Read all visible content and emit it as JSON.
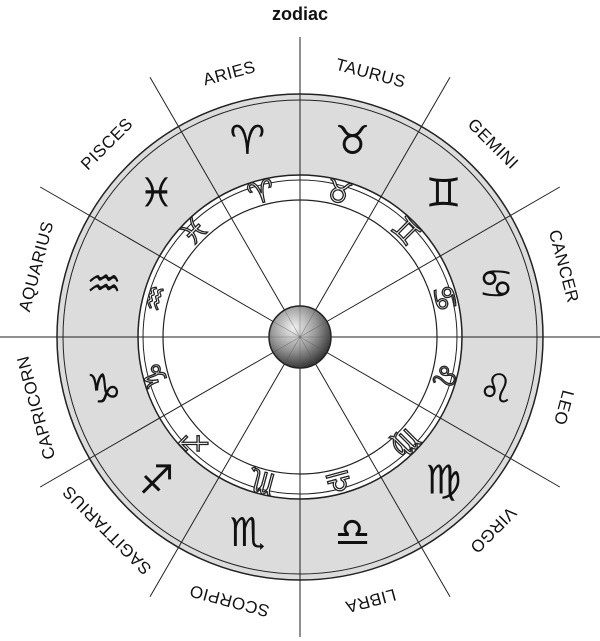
{
  "title": "zodiac",
  "colors": {
    "outer_ring": "#ffffff",
    "figure_ring": "#dcdcdc",
    "glyph_ring": "#ffffff",
    "hub": "#8a8a8a",
    "line": "#222222"
  },
  "signs": [
    {
      "name": "ARIES",
      "glyph": "♈",
      "icon": "ram-icon"
    },
    {
      "name": "TAURUS",
      "glyph": "♉",
      "icon": "bull-icon"
    },
    {
      "name": "GEMINI",
      "glyph": "♊",
      "icon": "twins-icon"
    },
    {
      "name": "CANCER",
      "glyph": "♋",
      "icon": "crab-icon"
    },
    {
      "name": "LEO",
      "glyph": "♌",
      "icon": "lion-icon"
    },
    {
      "name": "VIRGO",
      "glyph": "♍",
      "icon": "maiden-icon"
    },
    {
      "name": "LIBRA",
      "glyph": "♎",
      "icon": "scales-icon"
    },
    {
      "name": "SCORPIO",
      "glyph": "♏",
      "icon": "scorpion-icon"
    },
    {
      "name": "SAGITTARIUS",
      "glyph": "♐",
      "icon": "archer-icon"
    },
    {
      "name": "CAPRICORN",
      "glyph": "♑",
      "icon": "goat-icon"
    },
    {
      "name": "AQUARIUS",
      "glyph": "♒",
      "icon": "water-bearer-icon"
    },
    {
      "name": "PISCES",
      "glyph": "♓",
      "icon": "fish-icon"
    }
  ]
}
